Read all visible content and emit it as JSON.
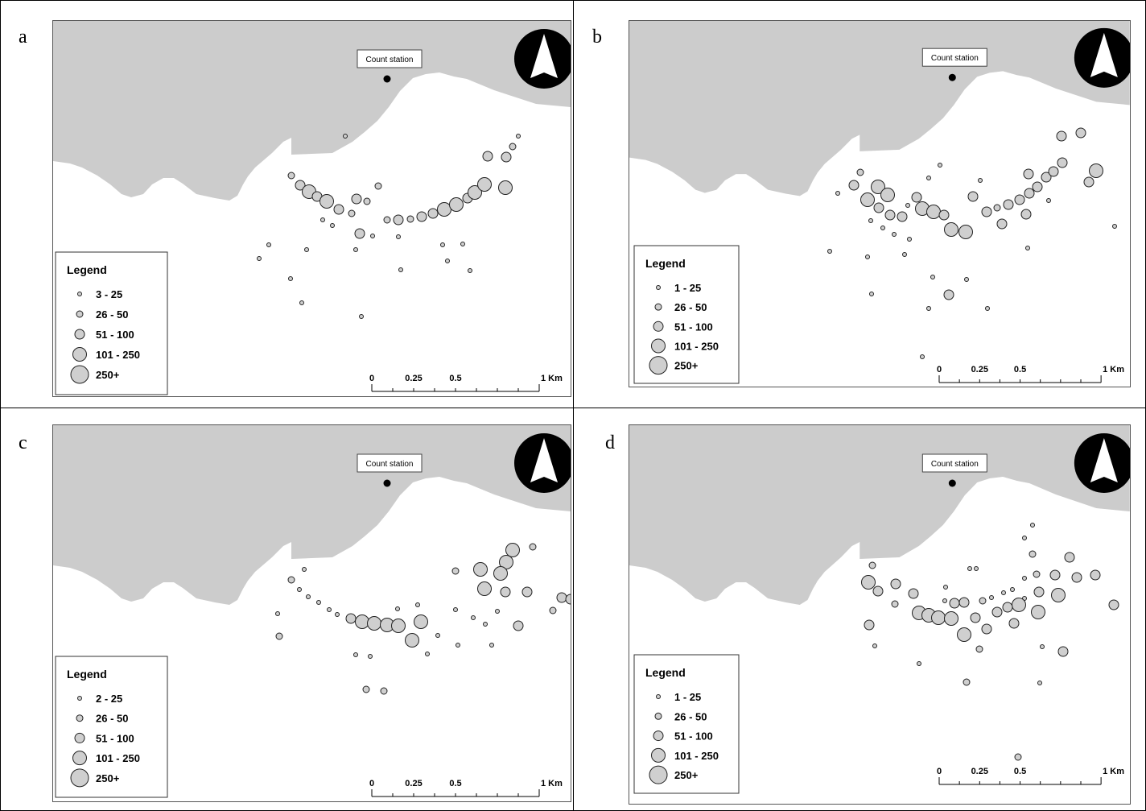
{
  "colors": {
    "land": "#cccccc",
    "symbol_fill": "#cfcfcf",
    "symbol_stroke": "#222222",
    "ink": "#000000"
  },
  "labels": {
    "count_station": "Count station",
    "legend_title": "Legend"
  },
  "scale_bar": {
    "ticks": [
      "0",
      "0.25",
      "0.5",
      "1 Km"
    ]
  },
  "panels": [
    {
      "letter": "a",
      "legend": [
        "3 - 25",
        "26 - 50",
        "51 - 100",
        "101 - 250",
        "250+"
      ],
      "points": [
        [
          428,
          168,
          1
        ],
        [
          643,
          168,
          1
        ],
        [
          636,
          181,
          2
        ],
        [
          605,
          193,
          3
        ],
        [
          628,
          194,
          3
        ],
        [
          361,
          217,
          2
        ],
        [
          372,
          229,
          3
        ],
        [
          383,
          237,
          4
        ],
        [
          393,
          243,
          3
        ],
        [
          469,
          230,
          2
        ],
        [
          442,
          246,
          3
        ],
        [
          455,
          249,
          2
        ],
        [
          405,
          249,
          4
        ],
        [
          420,
          259,
          3
        ],
        [
          436,
          264,
          2
        ],
        [
          400,
          272,
          1
        ],
        [
          412,
          279,
          1
        ],
        [
          480,
          272,
          2
        ],
        [
          494,
          272,
          3
        ],
        [
          509,
          271,
          2
        ],
        [
          523,
          268,
          3
        ],
        [
          537,
          264,
          3
        ],
        [
          551,
          259,
          4
        ],
        [
          566,
          253,
          4
        ],
        [
          580,
          245,
          3
        ],
        [
          589,
          238,
          4
        ],
        [
          601,
          228,
          4
        ],
        [
          627,
          232,
          4
        ],
        [
          446,
          289,
          3
        ],
        [
          462,
          292,
          1
        ],
        [
          494,
          293,
          1
        ],
        [
          333,
          303,
          1
        ],
        [
          380,
          309,
          1
        ],
        [
          441,
          309,
          1
        ],
        [
          549,
          303,
          1
        ],
        [
          574,
          302,
          1
        ],
        [
          321,
          320,
          1
        ],
        [
          555,
          323,
          1
        ],
        [
          497,
          334,
          1
        ],
        [
          583,
          335,
          1
        ],
        [
          360,
          345,
          1
        ],
        [
          374,
          375,
          1
        ],
        [
          448,
          392,
          1
        ]
      ]
    },
    {
      "letter": "b",
      "legend": [
        "1 - 25",
        "26 - 50",
        "51 - 100",
        "101 - 250",
        "250+"
      ],
      "points": [
        [
          1318,
          168,
          3
        ],
        [
          1342,
          164,
          3
        ],
        [
          1319,
          201,
          3
        ],
        [
          1361,
          211,
          4
        ],
        [
          1167,
          204,
          1
        ],
        [
          1068,
          213,
          2
        ],
        [
          1153,
          220,
          1
        ],
        [
          1277,
          215,
          3
        ],
        [
          1217,
          223,
          1
        ],
        [
          1299,
          219,
          3
        ],
        [
          1308,
          212,
          3
        ],
        [
          1352,
          225,
          3
        ],
        [
          1060,
          229,
          3
        ],
        [
          1090,
          231,
          4
        ],
        [
          1102,
          241,
          4
        ],
        [
          1040,
          239,
          1
        ],
        [
          1077,
          247,
          4
        ],
        [
          1138,
          244,
          3
        ],
        [
          1208,
          243,
          3
        ],
        [
          1127,
          254,
          1
        ],
        [
          1091,
          257,
          3
        ],
        [
          1105,
          266,
          3
        ],
        [
          1145,
          258,
          4
        ],
        [
          1159,
          262,
          4
        ],
        [
          1172,
          266,
          3
        ],
        [
          1238,
          257,
          2
        ],
        [
          1252,
          253,
          3
        ],
        [
          1266,
          247,
          3
        ],
        [
          1278,
          239,
          3
        ],
        [
          1288,
          231,
          3
        ],
        [
          1302,
          248,
          1
        ],
        [
          1225,
          262,
          3
        ],
        [
          1120,
          268,
          3
        ],
        [
          1081,
          273,
          1
        ],
        [
          1244,
          277,
          3
        ],
        [
          1274,
          265,
          3
        ],
        [
          1096,
          282,
          1
        ],
        [
          1110,
          290,
          1
        ],
        [
          1129,
          296,
          1
        ],
        [
          1181,
          284,
          4
        ],
        [
          1199,
          287,
          4
        ],
        [
          1384,
          280,
          1
        ],
        [
          1030,
          311,
          1
        ],
        [
          1077,
          318,
          1
        ],
        [
          1123,
          315,
          1
        ],
        [
          1276,
          307,
          1
        ],
        [
          1158,
          343,
          1
        ],
        [
          1200,
          346,
          1
        ],
        [
          1178,
          365,
          3
        ],
        [
          1082,
          364,
          1
        ],
        [
          1153,
          382,
          1
        ],
        [
          1226,
          382,
          1
        ],
        [
          1145,
          442,
          1
        ]
      ]
    },
    {
      "letter": "c",
      "legend": [
        "2 - 25",
        "26 - 50",
        "51 - 100",
        "101 - 250",
        "250+"
      ],
      "points": [
        [
          661,
          678,
          2
        ],
        [
          636,
          682,
          4
        ],
        [
          628,
          697,
          4
        ],
        [
          596,
          706,
          4
        ],
        [
          621,
          711,
          4
        ],
        [
          565,
          708,
          2
        ],
        [
          377,
          706,
          1
        ],
        [
          361,
          719,
          2
        ],
        [
          371,
          731,
          1
        ],
        [
          382,
          740,
          1
        ],
        [
          395,
          747,
          1
        ],
        [
          408,
          756,
          1
        ],
        [
          418,
          762,
          1
        ],
        [
          601,
          730,
          4
        ],
        [
          627,
          734,
          3
        ],
        [
          654,
          734,
          3
        ],
        [
          697,
          741,
          3
        ],
        [
          708,
          743,
          3
        ],
        [
          344,
          761,
          1
        ],
        [
          493,
          755,
          1
        ],
        [
          518,
          750,
          1
        ],
        [
          565,
          756,
          1
        ],
        [
          617,
          758,
          1
        ],
        [
          686,
          757,
          2
        ],
        [
          435,
          767,
          3
        ],
        [
          449,
          771,
          4
        ],
        [
          464,
          773,
          4
        ],
        [
          480,
          775,
          4
        ],
        [
          494,
          776,
          4
        ],
        [
          522,
          771,
          4
        ],
        [
          643,
          776,
          3
        ],
        [
          587,
          766,
          1
        ],
        [
          602,
          774,
          1
        ],
        [
          346,
          789,
          2
        ],
        [
          511,
          794,
          4
        ],
        [
          543,
          788,
          1
        ],
        [
          568,
          800,
          1
        ],
        [
          610,
          800,
          1
        ],
        [
          441,
          812,
          1
        ],
        [
          459,
          814,
          1
        ],
        [
          530,
          811,
          1
        ],
        [
          454,
          855,
          2
        ],
        [
          476,
          857,
          2
        ]
      ]
    },
    {
      "letter": "d",
      "legend": [
        "1 - 25",
        "26 - 50",
        "51 - 100",
        "101 - 250",
        "250+"
      ],
      "points": [
        [
          1282,
          651,
          1
        ],
        [
          1272,
          667,
          1
        ],
        [
          1282,
          687,
          2
        ],
        [
          1328,
          691,
          3
        ],
        [
          1083,
          701,
          2
        ],
        [
          1204,
          705,
          1
        ],
        [
          1212,
          705,
          1
        ],
        [
          1272,
          717,
          1
        ],
        [
          1287,
          712,
          2
        ],
        [
          1310,
          713,
          3
        ],
        [
          1337,
          716,
          3
        ],
        [
          1360,
          713,
          3
        ],
        [
          1078,
          722,
          4
        ],
        [
          1112,
          724,
          3
        ],
        [
          1090,
          733,
          3
        ],
        [
          1174,
          728,
          1
        ],
        [
          1134,
          736,
          3
        ],
        [
          1290,
          734,
          3
        ],
        [
          1246,
          735,
          1
        ],
        [
          1257,
          731,
          1
        ],
        [
          1173,
          745,
          1
        ],
        [
          1185,
          748,
          3
        ],
        [
          1197,
          747,
          3
        ],
        [
          1220,
          745,
          2
        ],
        [
          1231,
          741,
          1
        ],
        [
          1272,
          742,
          1
        ],
        [
          1314,
          738,
          4
        ],
        [
          1111,
          749,
          2
        ],
        [
          1383,
          750,
          3
        ],
        [
          1265,
          750,
          4
        ],
        [
          1251,
          753,
          3
        ],
        [
          1238,
          759,
          3
        ],
        [
          1141,
          760,
          4
        ],
        [
          1153,
          763,
          4
        ],
        [
          1165,
          766,
          4
        ],
        [
          1181,
          767,
          4
        ],
        [
          1211,
          766,
          3
        ],
        [
          1289,
          759,
          4
        ],
        [
          1225,
          780,
          3
        ],
        [
          1259,
          773,
          3
        ],
        [
          1079,
          775,
          3
        ],
        [
          1197,
          787,
          4
        ],
        [
          1086,
          801,
          1
        ],
        [
          1216,
          805,
          2
        ],
        [
          1294,
          802,
          1
        ],
        [
          1320,
          808,
          3
        ],
        [
          1141,
          823,
          1
        ],
        [
          1200,
          846,
          2
        ],
        [
          1291,
          847,
          1
        ],
        [
          1264,
          939,
          2
        ]
      ]
    }
  ]
}
